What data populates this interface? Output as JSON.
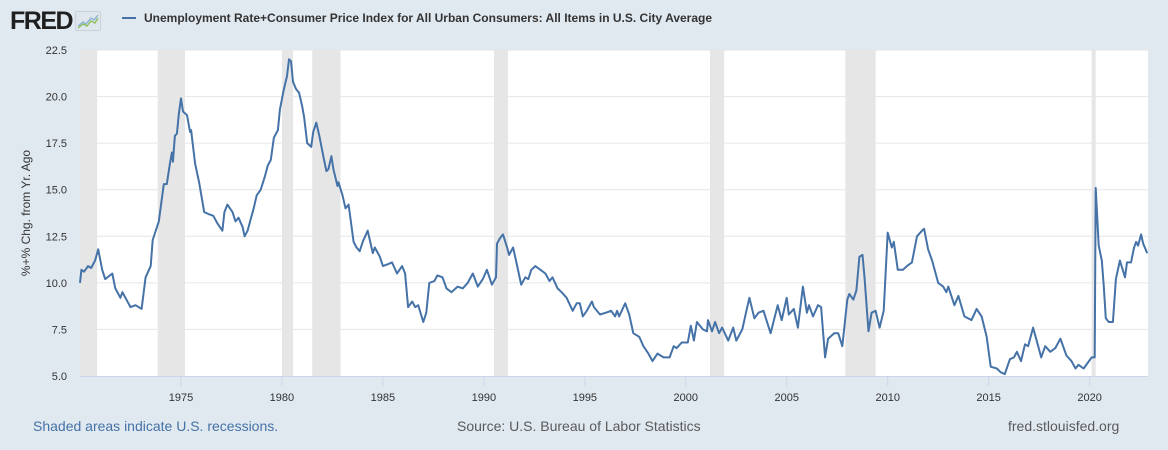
{
  "header": {
    "logo_text": "FRED",
    "logo_icon": "line-chart-icon",
    "legend_label": "Unemployment Rate+Consumer Price Index for All Urban Consumers: All Items in U.S. City Average"
  },
  "footer": {
    "recession_note": "Shaded areas indicate U.S. recessions.",
    "source": "Source: U.S. Bureau of Labor Statistics",
    "site": "fred.stlouisfed.org"
  },
  "colors": {
    "background": "#e1e9f0",
    "plot_background": "#ffffff",
    "series": "#4572a7",
    "recession": "#e6e6e6",
    "grid": "#e6e6e6",
    "axis": "#ccd6eb"
  },
  "chart_data": {
    "type": "line",
    "title": "Unemployment Rate+Consumer Price Index for All Urban Consumers: All Items in U.S. City Average",
    "xlabel": "",
    "ylabel": "%+% Chg. from Yr. Ago",
    "xlim": [
      1970.0,
      2022.89
    ],
    "ylim": [
      5.0,
      22.5
    ],
    "x_ticks": [
      1975,
      1980,
      1985,
      1990,
      1995,
      2000,
      2005,
      2010,
      2015,
      2020
    ],
    "x_tick_labels": [
      "1975",
      "1980",
      "1985",
      "1990",
      "1995",
      "2000",
      "2005",
      "2010",
      "2015",
      "2020"
    ],
    "y_ticks": [
      5.0,
      7.5,
      10.0,
      12.5,
      15.0,
      17.5,
      20.0,
      22.5
    ],
    "y_tick_labels": [
      "5.0",
      "7.5",
      "10.0",
      "12.5",
      "15.0",
      "17.5",
      "20.0",
      "22.5"
    ],
    "grid": true,
    "legend": "top-left",
    "recessions": [
      [
        1970.0,
        1970.85
      ],
      [
        1973.85,
        1975.2
      ],
      [
        1980.0,
        1980.55
      ],
      [
        1981.5,
        1982.9
      ],
      [
        1990.5,
        1991.2
      ],
      [
        2001.2,
        2001.9
      ],
      [
        2007.9,
        2009.4
      ],
      [
        2020.1,
        2020.3
      ]
    ],
    "series": [
      {
        "name": "Unemployment Rate+Consumer Price Index for All Urban Consumers: All Items in U.S. City Average",
        "x": [
          1970.0,
          1970.07,
          1970.2,
          1970.4,
          1970.55,
          1970.75,
          1970.9,
          1971.1,
          1971.25,
          1971.6,
          1971.75,
          1972.0,
          1972.1,
          1972.5,
          1972.75,
          1973.05,
          1973.25,
          1973.5,
          1973.6,
          1973.9,
          1974.1,
          1974.15,
          1974.3,
          1974.45,
          1974.55,
          1974.6,
          1974.7,
          1974.8,
          1974.9,
          1975.0,
          1975.1,
          1975.3,
          1975.45,
          1975.5,
          1975.7,
          1975.9,
          1976.15,
          1976.35,
          1976.6,
          1976.8,
          1977.05,
          1977.15,
          1977.3,
          1977.55,
          1977.7,
          1977.85,
          1978.05,
          1978.15,
          1978.3,
          1978.45,
          1978.6,
          1978.75,
          1978.95,
          1979.15,
          1979.3,
          1979.45,
          1979.6,
          1979.8,
          1979.9,
          1980.1,
          1980.25,
          1980.35,
          1980.45,
          1980.55,
          1980.7,
          1980.85,
          1981.0,
          1981.1,
          1981.25,
          1981.45,
          1981.55,
          1981.7,
          1981.85,
          1982.05,
          1982.2,
          1982.3,
          1982.45,
          1982.55,
          1982.75,
          1982.8,
          1983.0,
          1983.15,
          1983.3,
          1983.55,
          1983.7,
          1983.85,
          1984.0,
          1984.25,
          1984.5,
          1984.6,
          1984.85,
          1985.0,
          1985.25,
          1985.45,
          1985.7,
          1985.95,
          1986.1,
          1986.25,
          1986.45,
          1986.6,
          1986.75,
          1987.0,
          1987.15,
          1987.3,
          1987.55,
          1987.7,
          1987.95,
          1988.15,
          1988.4,
          1988.7,
          1988.95,
          1989.2,
          1989.45,
          1989.7,
          1989.95,
          1990.15,
          1990.4,
          1990.6,
          1990.65,
          1990.8,
          1990.95,
          1991.15,
          1991.25,
          1991.45,
          1991.65,
          1991.85,
          1992.05,
          1992.2,
          1992.35,
          1992.55,
          1992.8,
          1993.05,
          1993.25,
          1993.4,
          1993.65,
          1993.85,
          1994.1,
          1994.4,
          1994.6,
          1994.75,
          1994.9,
          1995.1,
          1995.35,
          1995.45,
          1995.75,
          1996.05,
          1996.3,
          1996.5,
          1996.6,
          1996.7,
          1997.0,
          1997.2,
          1997.4,
          1997.7,
          1997.9,
          1998.15,
          1998.35,
          1998.6,
          1998.9,
          1999.2,
          1999.4,
          1999.55,
          1999.8,
          2000.1,
          2000.25,
          2000.4,
          2000.55,
          2000.85,
          2001.05,
          2001.1,
          2001.3,
          2001.45,
          2001.65,
          2001.8,
          2002.1,
          2002.35,
          2002.5,
          2002.8,
          2003.0,
          2003.15,
          2003.4,
          2003.6,
          2003.85,
          2004.05,
          2004.2,
          2004.55,
          2004.75,
          2005.0,
          2005.1,
          2005.35,
          2005.55,
          2005.8,
          2006.0,
          2006.1,
          2006.3,
          2006.55,
          2006.7,
          2006.9,
          2007.05,
          2007.35,
          2007.55,
          2007.75,
          2008.0,
          2008.1,
          2008.3,
          2008.45,
          2008.6,
          2008.75,
          2008.85,
          2009.05,
          2009.2,
          2009.4,
          2009.6,
          2009.8,
          2010.0,
          2010.2,
          2010.3,
          2010.5,
          2010.75,
          2010.95,
          2011.2,
          2011.45,
          2011.7,
          2011.8,
          2012.0,
          2012.2,
          2012.5,
          2012.75,
          2012.9,
          2013.0,
          2013.3,
          2013.5,
          2013.8,
          2014.15,
          2014.4,
          2014.65,
          2014.9,
          2015.1,
          2015.4,
          2015.6,
          2015.8,
          2016.05,
          2016.25,
          2016.4,
          2016.6,
          2016.8,
          2016.95,
          2017.2,
          2017.45,
          2017.6,
          2017.8,
          2018.05,
          2018.3,
          2018.55,
          2018.85,
          2019.1,
          2019.3,
          2019.45,
          2019.7,
          2019.9,
          2020.1,
          2020.25,
          2020.3,
          2020.45,
          2020.6,
          2020.7,
          2020.8,
          2020.95,
          2021.15,
          2021.3,
          2021.5,
          2021.75,
          2021.85,
          2022.05,
          2022.2,
          2022.3,
          2022.4,
          2022.55,
          2022.65,
          2022.85
        ],
        "y": [
          10.0,
          10.7,
          10.6,
          10.9,
          10.8,
          11.2,
          11.8,
          10.7,
          10.2,
          10.5,
          9.7,
          9.2,
          9.5,
          8.7,
          8.8,
          8.6,
          10.3,
          10.9,
          12.3,
          13.3,
          14.9,
          15.3,
          15.3,
          16.4,
          17.0,
          16.5,
          17.9,
          18.0,
          19.1,
          19.9,
          19.2,
          19.0,
          18.1,
          18.2,
          16.4,
          15.4,
          13.8,
          13.7,
          13.6,
          13.2,
          12.8,
          13.8,
          14.2,
          13.8,
          13.3,
          13.5,
          13.0,
          12.5,
          12.8,
          13.4,
          14.0,
          14.7,
          15.0,
          15.7,
          16.3,
          16.6,
          17.8,
          18.2,
          19.3,
          20.4,
          21.1,
          22.0,
          21.9,
          20.8,
          20.4,
          20.2,
          19.5,
          18.9,
          17.5,
          17.3,
          18.1,
          18.6,
          17.9,
          16.8,
          16.0,
          16.1,
          16.8,
          16.1,
          15.2,
          15.4,
          14.7,
          14.0,
          14.2,
          12.2,
          11.9,
          11.7,
          12.2,
          12.8,
          11.6,
          11.9,
          11.4,
          10.9,
          11.0,
          11.1,
          10.5,
          10.9,
          10.5,
          8.7,
          9.0,
          8.7,
          8.8,
          7.9,
          8.4,
          10.0,
          10.1,
          10.4,
          10.3,
          9.7,
          9.5,
          9.8,
          9.7,
          10.0,
          10.5,
          9.8,
          10.2,
          10.7,
          9.9,
          10.3,
          12.1,
          12.4,
          12.6,
          11.9,
          11.5,
          11.9,
          10.9,
          9.9,
          10.3,
          10.2,
          10.7,
          10.9,
          10.7,
          10.5,
          10.1,
          10.3,
          9.7,
          9.5,
          9.2,
          8.5,
          8.9,
          8.9,
          8.2,
          8.5,
          9.0,
          8.7,
          8.3,
          8.4,
          8.5,
          8.2,
          8.5,
          8.2,
          8.9,
          8.3,
          7.3,
          7.1,
          6.6,
          6.2,
          5.8,
          6.2,
          6.0,
          6.0,
          6.6,
          6.5,
          6.8,
          6.8,
          7.7,
          6.9,
          7.9,
          7.5,
          7.4,
          8.0,
          7.4,
          7.9,
          7.3,
          7.6,
          6.9,
          7.6,
          6.9,
          7.5,
          8.5,
          9.2,
          8.1,
          8.4,
          8.5,
          7.8,
          7.3,
          8.8,
          8.0,
          9.2,
          8.3,
          8.6,
          7.6,
          9.8,
          8.4,
          8.8,
          8.2,
          8.8,
          8.7,
          6.0,
          7.0,
          7.3,
          7.3,
          6.6,
          9.1,
          9.4,
          9.1,
          9.6,
          11.4,
          11.5,
          10.3,
          7.4,
          8.4,
          8.5,
          7.6,
          8.5,
          12.7,
          11.9,
          12.2,
          10.7,
          10.7,
          10.9,
          11.1,
          12.5,
          12.8,
          12.9,
          11.8,
          11.2,
          10.0,
          9.8,
          9.5,
          9.8,
          8.8,
          9.3,
          8.2,
          8.0,
          8.6,
          8.2,
          7.1,
          5.5,
          5.4,
          5.2,
          5.1,
          5.9,
          6.0,
          6.3,
          5.8,
          6.7,
          6.6,
          7.6,
          6.6,
          6.0,
          6.6,
          6.3,
          6.5,
          7.0,
          6.1,
          5.8,
          5.4,
          5.6,
          5.4,
          5.7,
          6.0,
          6.0,
          15.1,
          12.0,
          11.2,
          9.8,
          8.1,
          7.9,
          7.9,
          10.2,
          11.2,
          10.3,
          11.1,
          11.1,
          11.9,
          12.2,
          12.0,
          12.6,
          12.1,
          11.6
        ]
      }
    ]
  }
}
